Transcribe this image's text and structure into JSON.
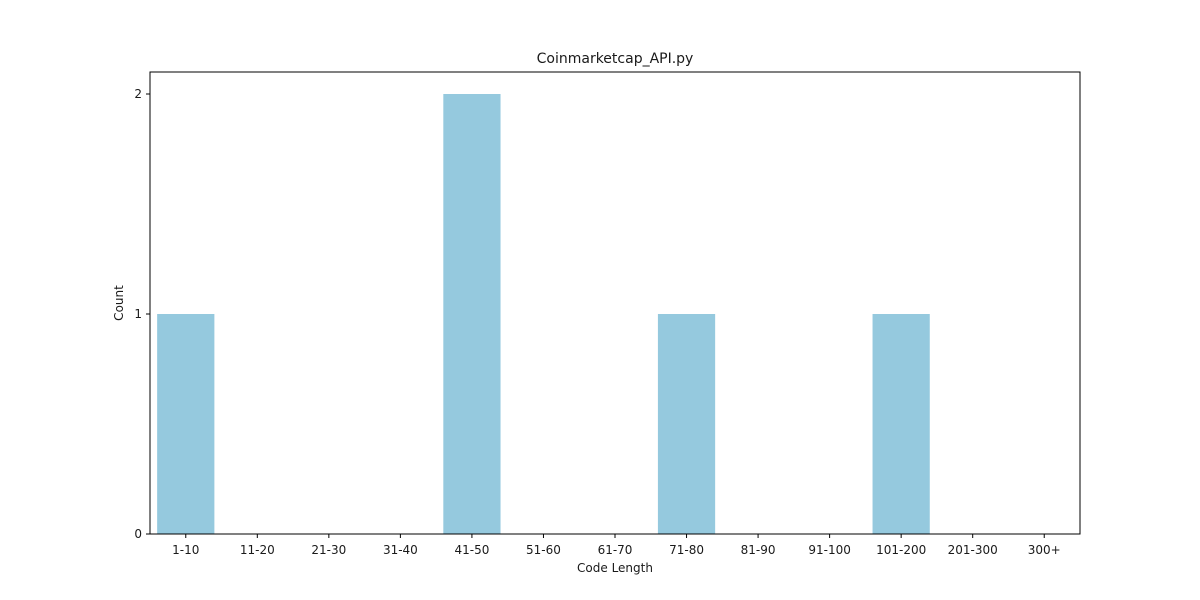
{
  "chart_data": {
    "type": "bar",
    "title": "Coinmarketcap_API.py",
    "xlabel": "Code Length",
    "ylabel": "Count",
    "categories": [
      "1-10",
      "11-20",
      "21-30",
      "31-40",
      "41-50",
      "51-60",
      "61-70",
      "71-80",
      "81-90",
      "91-100",
      "101-200",
      "201-300",
      "300+"
    ],
    "values": [
      1,
      0,
      0,
      0,
      2,
      0,
      0,
      1,
      0,
      0,
      1,
      0,
      0
    ],
    "ylim": [
      0,
      2.1
    ],
    "yticks": [
      0,
      1,
      2
    ],
    "grid": false,
    "legend": false,
    "bar_color": "#95c9de"
  }
}
